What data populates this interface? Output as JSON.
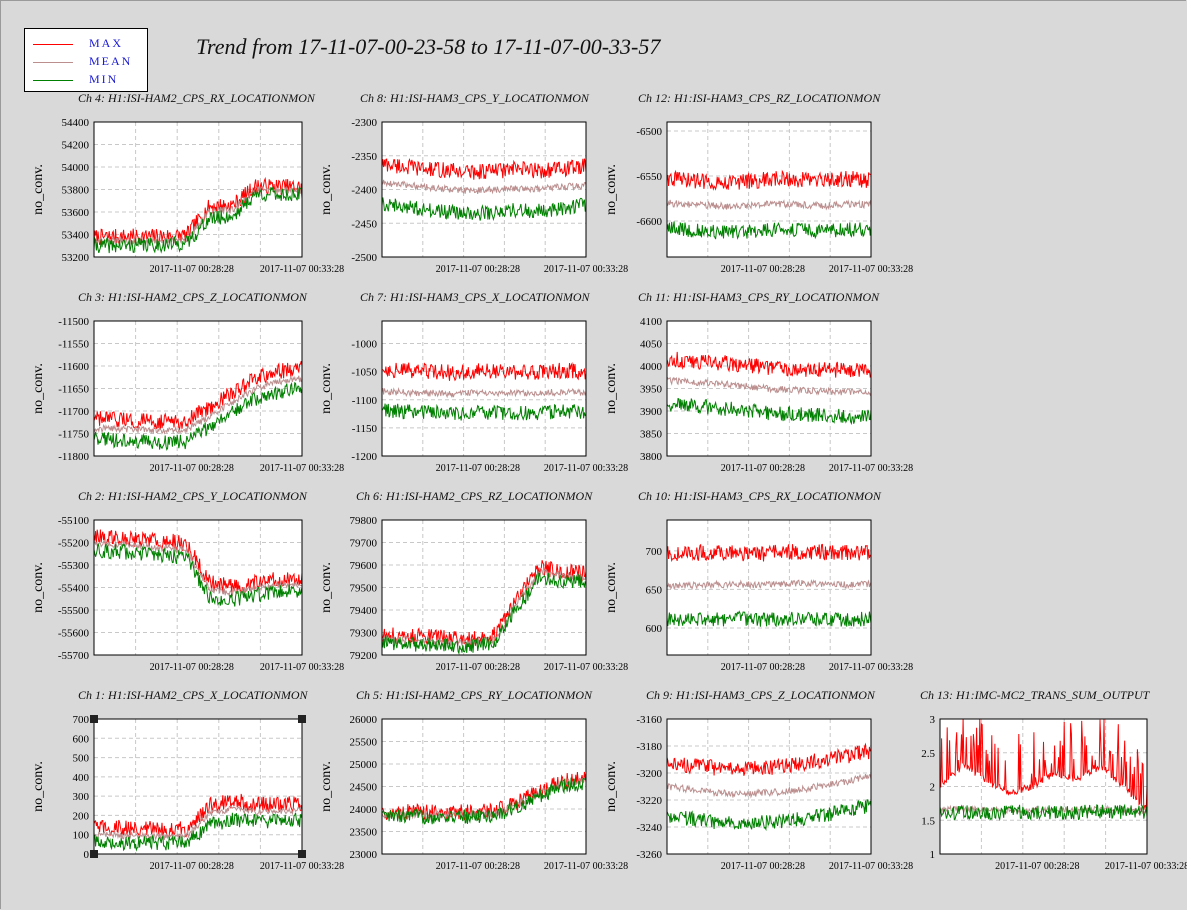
{
  "window": {
    "title": "Trend from 17-11-07-00-23-58 to 17-11-07-00-33-57"
  },
  "legend": [
    {
      "label": "MAX",
      "color": "#ff0000"
    },
    {
      "label": "MEAN",
      "color": "#bc8f8f"
    },
    {
      "label": "MIN",
      "color": "#008000"
    }
  ],
  "colors": {
    "max": "#ff0000",
    "mean": "#bc8f8f",
    "min": "#008000",
    "grid": "#c8c8c8",
    "plot_bg": "#ffffff"
  },
  "chart_data": [
    {
      "type": "line",
      "title": "Ch 4: H1:ISI-HAM2_CPS_RX_LOCATIONMON",
      "ylabel": "no_conv.",
      "ylim": [
        53200,
        54400
      ],
      "yticks": [
        "54400",
        "54200",
        "54000",
        "53800",
        "53600",
        "53400",
        "53200"
      ],
      "xticks": [
        "2017-11-07 00:28:28",
        "2017-11-07 00:33:28"
      ],
      "series": [
        {
          "name": "MAX",
          "values": [
            53375,
            53380,
            53380,
            53385,
            53390,
            53650,
            53660,
            53830,
            53825,
            53820
          ]
        },
        {
          "name": "MEAN",
          "values": [
            53340,
            53340,
            53345,
            53345,
            53350,
            53610,
            53620,
            53800,
            53795,
            53790
          ]
        },
        {
          "name": "MIN",
          "values": [
            53300,
            53300,
            53305,
            53310,
            53320,
            53540,
            53560,
            53760,
            53755,
            53750
          ]
        }
      ]
    },
    {
      "type": "line",
      "title": "Ch 8: H1:ISI-HAM3_CPS_Y_LOCATIONMON",
      "ylabel": "no_conv.",
      "ylim": [
        -2500,
        -2300
      ],
      "yticks": [
        "-2300",
        "-2350",
        "-2400",
        "-2450",
        "-2500"
      ],
      "xticks": [
        "2017-11-07 00:28:28",
        "2017-11-07 00:33:28"
      ],
      "series": [
        {
          "name": "MAX",
          "values": [
            -2362,
            -2366,
            -2370,
            -2372,
            -2374,
            -2372,
            -2370,
            -2372,
            -2369,
            -2366
          ]
        },
        {
          "name": "MEAN",
          "values": [
            -2390,
            -2393,
            -2397,
            -2400,
            -2402,
            -2400,
            -2398,
            -2399,
            -2396,
            -2394
          ]
        },
        {
          "name": "MIN",
          "values": [
            -2420,
            -2425,
            -2430,
            -2434,
            -2436,
            -2434,
            -2430,
            -2432,
            -2428,
            -2422
          ]
        }
      ]
    },
    {
      "type": "line",
      "title": "Ch 12: H1:ISI-HAM3_CPS_RZ_LOCATIONMON",
      "ylabel": "no_conv.",
      "ylim": [
        -6640,
        -6490
      ],
      "yticks": [
        "-6500",
        "-6550",
        "-6600"
      ],
      "xticks": [
        "2017-11-07 00:28:28",
        "2017-11-07 00:33:28"
      ],
      "series": [
        {
          "name": "MAX",
          "values": [
            -6552,
            -6555,
            -6556,
            -6557,
            -6555,
            -6553,
            -6554,
            -6556,
            -6553,
            -6555
          ]
        },
        {
          "name": "MEAN",
          "values": [
            -6580,
            -6582,
            -6583,
            -6584,
            -6582,
            -6581,
            -6582,
            -6583,
            -6581,
            -6582
          ]
        },
        {
          "name": "MIN",
          "values": [
            -6608,
            -6610,
            -6612,
            -6613,
            -6611,
            -6609,
            -6610,
            -6612,
            -6609,
            -6610
          ]
        }
      ]
    },
    {
      "type": "line",
      "title": "Ch 3: H1:ISI-HAM2_CPS_Z_LOCATIONMON",
      "ylabel": "no_conv.",
      "ylim": [
        -11800,
        -11500
      ],
      "yticks": [
        "-11500",
        "-11550",
        "-11600",
        "-11650",
        "-11700",
        "-11750",
        "-11800"
      ],
      "xticks": [
        "2017-11-07 00:28:28",
        "2017-11-07 00:33:28"
      ],
      "series": [
        {
          "name": "MAX",
          "values": [
            -11718,
            -11720,
            -11722,
            -11724,
            -11722,
            -11690,
            -11660,
            -11628,
            -11612,
            -11605
          ]
        },
        {
          "name": "MEAN",
          "values": [
            -11738,
            -11740,
            -11742,
            -11744,
            -11742,
            -11712,
            -11680,
            -11650,
            -11635,
            -11628
          ]
        },
        {
          "name": "MIN",
          "values": [
            -11762,
            -11765,
            -11768,
            -11770,
            -11768,
            -11735,
            -11700,
            -11672,
            -11658,
            -11650
          ]
        }
      ]
    },
    {
      "type": "line",
      "title": "Ch 7: H1:ISI-HAM3_CPS_X_LOCATIONMON",
      "ylabel": "no_conv.",
      "ylim": [
        -1200,
        -960
      ],
      "yticks": [
        "-1000",
        "-1050",
        "-1100",
        "-1150",
        "-1200"
      ],
      "xticks": [
        "2017-11-07 00:28:28",
        "2017-11-07 00:33:28"
      ],
      "series": [
        {
          "name": "MAX",
          "values": [
            -1045,
            -1048,
            -1050,
            -1052,
            -1050,
            -1049,
            -1051,
            -1050,
            -1048,
            -1050
          ]
        },
        {
          "name": "MEAN",
          "values": [
            -1085,
            -1087,
            -1088,
            -1090,
            -1088,
            -1087,
            -1089,
            -1088,
            -1086,
            -1088
          ]
        },
        {
          "name": "MIN",
          "values": [
            -1118,
            -1121,
            -1123,
            -1125,
            -1123,
            -1122,
            -1124,
            -1123,
            -1120,
            -1122
          ]
        }
      ]
    },
    {
      "type": "line",
      "title": "Ch 11: H1:ISI-HAM3_CPS_RY_LOCATIONMON",
      "ylabel": "no_conv.",
      "ylim": [
        3800,
        4100
      ],
      "yticks": [
        "4100",
        "4050",
        "4000",
        "3950",
        "3900",
        "3850",
        "3800"
      ],
      "xticks": [
        "2017-11-07 00:28:28",
        "2017-11-07 00:33:28"
      ],
      "series": [
        {
          "name": "MAX",
          "values": [
            4015,
            4012,
            4008,
            4005,
            4000,
            3996,
            3994,
            3993,
            3991,
            3990
          ]
        },
        {
          "name": "MEAN",
          "values": [
            3968,
            3965,
            3961,
            3958,
            3952,
            3948,
            3946,
            3944,
            3942,
            3940
          ]
        },
        {
          "name": "MIN",
          "values": [
            3915,
            3912,
            3908,
            3904,
            3898,
            3894,
            3892,
            3890,
            3888,
            3886
          ]
        }
      ]
    },
    {
      "type": "line",
      "title": "Ch 2: H1:ISI-HAM2_CPS_Y_LOCATIONMON",
      "ylabel": "no_conv.",
      "ylim": [
        -55700,
        -55100
      ],
      "yticks": [
        "-55100",
        "-55200",
        "-55300",
        "-55400",
        "-55500",
        "-55600",
        "-55700"
      ],
      "xticks": [
        "2017-11-07 00:28:28",
        "2017-11-07 00:33:28"
      ],
      "series": [
        {
          "name": "MAX",
          "values": [
            -55170,
            -55178,
            -55185,
            -55192,
            -55205,
            -55380,
            -55395,
            -55378,
            -55365,
            -55360
          ]
        },
        {
          "name": "MEAN",
          "values": [
            -55205,
            -55210,
            -55217,
            -55224,
            -55236,
            -55410,
            -55425,
            -55405,
            -55392,
            -55385
          ]
        },
        {
          "name": "MIN",
          "values": [
            -55235,
            -55240,
            -55248,
            -55255,
            -55268,
            -55445,
            -55455,
            -55432,
            -55420,
            -55412
          ]
        }
      ]
    },
    {
      "type": "line",
      "title": "Ch 6: H1:ISI-HAM2_CPS_RZ_LOCATIONMON",
      "ylabel": "no_conv.",
      "ylim": [
        79200,
        79800
      ],
      "yticks": [
        "79800",
        "79700",
        "79600",
        "79500",
        "79400",
        "79300",
        "79200"
      ],
      "xticks": [
        "2017-11-07 00:28:28",
        "2017-11-07 00:33:28"
      ],
      "series": [
        {
          "name": "MAX",
          "values": [
            79290,
            79285,
            79280,
            79275,
            79275,
            79290,
            79460,
            79590,
            79570,
            79565
          ]
        },
        {
          "name": "MEAN",
          "values": [
            79270,
            79265,
            79260,
            79255,
            79255,
            79270,
            79440,
            79570,
            79550,
            79545
          ]
        },
        {
          "name": "MIN",
          "values": [
            79255,
            79250,
            79245,
            79240,
            79240,
            79255,
            79415,
            79545,
            79530,
            79525
          ]
        }
      ]
    },
    {
      "type": "line",
      "title": "Ch 10: H1:ISI-HAM3_CPS_RX_LOCATIONMON",
      "ylabel": "no_conv.",
      "ylim": [
        565,
        740
      ],
      "yticks": [
        "700",
        "650",
        "600"
      ],
      "xticks": [
        "2017-11-07 00:28:28",
        "2017-11-07 00:33:28"
      ],
      "series": [
        {
          "name": "MAX",
          "values": [
            696,
            697,
            698,
            697,
            696,
            698,
            699,
            698,
            697,
            698
          ]
        },
        {
          "name": "MEAN",
          "values": [
            654,
            655,
            656,
            657,
            656,
            657,
            658,
            657,
            656,
            657
          ]
        },
        {
          "name": "MIN",
          "values": [
            611,
            610,
            611,
            612,
            611,
            612,
            613,
            612,
            611,
            612
          ]
        }
      ]
    },
    {
      "type": "line",
      "title": "Ch 1: H1:ISI-HAM2_CPS_X_LOCATIONMON",
      "ylabel": "no_conv.",
      "ylim": [
        0,
        700
      ],
      "yticks": [
        "700",
        "600",
        "500",
        "400",
        "300",
        "200",
        "100",
        "0"
      ],
      "xticks": [
        "2017-11-07 00:28:28",
        "2017-11-07 00:33:28"
      ],
      "series": [
        {
          "name": "MAX",
          "values": [
            140,
            135,
            130,
            128,
            130,
            250,
            280,
            255,
            258,
            262
          ]
        },
        {
          "name": "MEAN",
          "values": [
            100,
            96,
            92,
            90,
            92,
            210,
            235,
            218,
            220,
            225
          ]
        },
        {
          "name": "MIN",
          "values": [
            65,
            60,
            56,
            54,
            56,
            150,
            180,
            170,
            172,
            178
          ]
        }
      ]
    },
    {
      "type": "line",
      "title": "Ch 5: H1:ISI-HAM2_CPS_RY_LOCATIONMON",
      "ylabel": "no_conv.",
      "ylim": [
        23000,
        26000
      ],
      "yticks": [
        "26000",
        "25500",
        "25000",
        "24500",
        "24000",
        "23500",
        "23000"
      ],
      "xticks": [
        "2017-11-07 00:28:28",
        "2017-11-07 00:33:28"
      ],
      "series": [
        {
          "name": "MAX",
          "values": [
            23930,
            23930,
            23925,
            23925,
            23925,
            23960,
            24150,
            24420,
            24620,
            24680
          ]
        },
        {
          "name": "MEAN",
          "values": [
            23880,
            23880,
            23875,
            23875,
            23875,
            23910,
            24100,
            24360,
            24580,
            24640
          ]
        },
        {
          "name": "MIN",
          "values": [
            23830,
            23830,
            23825,
            23825,
            23825,
            23860,
            24050,
            24300,
            24530,
            24590
          ]
        }
      ]
    },
    {
      "type": "line",
      "title": "Ch 9: H1:ISI-HAM3_CPS_Z_LOCATIONMON",
      "ylabel": "no_conv.",
      "ylim": [
        -3260,
        -3160
      ],
      "yticks": [
        "-3160",
        "-3180",
        "-3200",
        "-3220",
        "-3240",
        "-3260"
      ],
      "xticks": [
        "2017-11-07 00:28:28",
        "2017-11-07 00:33:28"
      ],
      "series": [
        {
          "name": "MAX",
          "values": [
            -3192,
            -3194,
            -3196,
            -3197,
            -3196,
            -3195,
            -3193,
            -3190,
            -3187,
            -3184
          ]
        },
        {
          "name": "MEAN",
          "values": [
            -3210,
            -3212,
            -3214,
            -3216,
            -3215,
            -3214,
            -3212,
            -3209,
            -3206,
            -3202
          ]
        },
        {
          "name": "MIN",
          "values": [
            -3232,
            -3234,
            -3236,
            -3238,
            -3237,
            -3236,
            -3234,
            -3231,
            -3227,
            -3224
          ]
        }
      ]
    },
    {
      "type": "line",
      "title": "Ch 13: H1:IMC-MC2_TRANS_SUM_OUTPUT",
      "ylabel": "",
      "ylim": [
        1,
        3
      ],
      "yticks": [
        "3",
        "2.5",
        "2",
        "1.5",
        "1"
      ],
      "xticks": [
        "2017-11-07 00:28:28",
        "2017-11-07 00:33:28"
      ],
      "series": [
        {
          "name": "MAX",
          "values": [
            2.0,
            2.3,
            2.1,
            1.9,
            2.0,
            2.2,
            2.1,
            2.3,
            2.0,
            1.65
          ]
        },
        {
          "name": "MEAN",
          "values": [
            1.65,
            1.66,
            1.65,
            1.65,
            1.66,
            1.66,
            1.65,
            1.66,
            1.65,
            1.64
          ]
        },
        {
          "name": "MIN",
          "values": [
            1.62,
            1.62,
            1.62,
            1.62,
            1.62,
            1.62,
            1.62,
            1.62,
            1.62,
            1.62
          ]
        }
      ]
    }
  ]
}
